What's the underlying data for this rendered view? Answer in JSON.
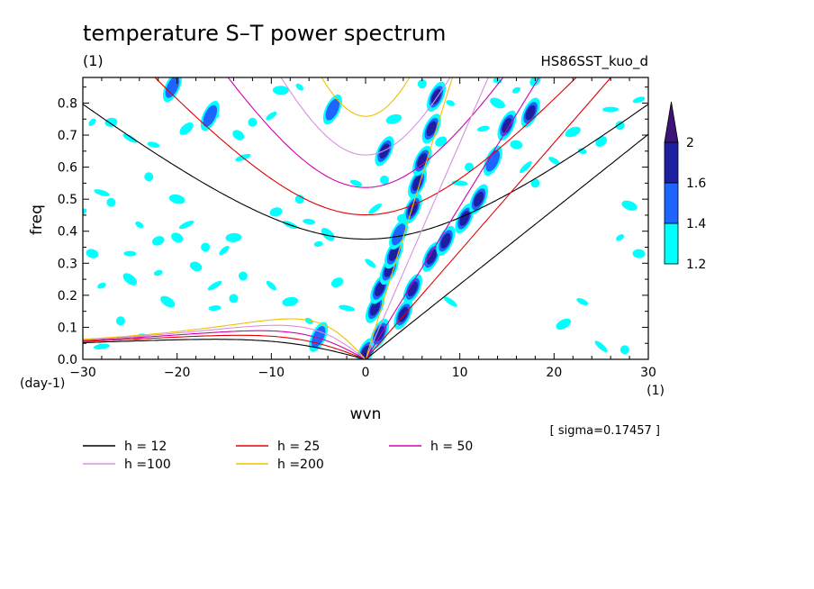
{
  "chart_data": {
    "type": "heatmap",
    "title": "temperature S–T power spectrum",
    "subtitle_left": "(1)",
    "subtitle_right": "HS86SST_kuo_d",
    "xlabel": "wvn",
    "ylabel": "freq",
    "x_unit": "(1)",
    "y_unit": "(day-1)",
    "xlim": [
      -30,
      30
    ],
    "ylim": [
      0,
      0.88
    ],
    "x_ticks": [
      -30,
      -20,
      -10,
      0,
      10,
      20,
      30
    ],
    "x_tick_labels": [
      "−30",
      "−20",
      "−10",
      "0",
      "10",
      "20",
      "30"
    ],
    "y_ticks": [
      0,
      0.1,
      0.2,
      0.3,
      0.4,
      0.5,
      0.6,
      0.7,
      0.8
    ],
    "y_tick_labels": [
      "0.0",
      "0.1",
      "0.2",
      "0.3",
      "0.4",
      "0.5",
      "0.6",
      "0.7",
      "0.8"
    ],
    "annotation": "[ sigma=0.17457 ]",
    "colorbar": {
      "levels": [
        1.2,
        1.4,
        1.6,
        2
      ],
      "labels": [
        "1.2",
        "1.4",
        "1.6",
        "2"
      ],
      "colors": [
        "#00ffff",
        "#1e64ff",
        "#1e1ea0",
        "#3c1478"
      ]
    },
    "dispersion_curves": [
      {
        "name": "h = 12",
        "h": 12,
        "color": "#000000"
      },
      {
        "name": "h = 25",
        "h": 25,
        "color": "#e00000"
      },
      {
        "name": "h = 50",
        "h": 50,
        "color": "#d000b0"
      },
      {
        "name": "h =100",
        "h": 100,
        "color": "#d890e0"
      },
      {
        "name": "h =200",
        "h": 200,
        "color": "#f0c000"
      }
    ],
    "power_blobs": [
      {
        "x": 0,
        "y": 0.02,
        "level": 3
      },
      {
        "x": 1.5,
        "y": 0.08,
        "level": 3
      },
      {
        "x": 1.0,
        "y": 0.16,
        "level": 3
      },
      {
        "x": 1.5,
        "y": 0.22,
        "level": 3
      },
      {
        "x": 2.5,
        "y": 0.28,
        "level": 3
      },
      {
        "x": 3.0,
        "y": 0.33,
        "level": 3
      },
      {
        "x": 3.5,
        "y": 0.39,
        "level": 2
      },
      {
        "x": 5.0,
        "y": 0.47,
        "level": 3
      },
      {
        "x": 5.5,
        "y": 0.55,
        "level": 3
      },
      {
        "x": 6.0,
        "y": 0.62,
        "level": 3
      },
      {
        "x": 7.0,
        "y": 0.72,
        "level": 3
      },
      {
        "x": 7.5,
        "y": 0.82,
        "level": 3
      },
      {
        "x": 4.0,
        "y": 0.14,
        "level": 3
      },
      {
        "x": 5.0,
        "y": 0.22,
        "level": 3
      },
      {
        "x": 7.0,
        "y": 0.32,
        "level": 3
      },
      {
        "x": 8.5,
        "y": 0.37,
        "level": 3
      },
      {
        "x": 10.5,
        "y": 0.44,
        "level": 3
      },
      {
        "x": 12.0,
        "y": 0.5,
        "level": 3
      },
      {
        "x": 13.5,
        "y": 0.62,
        "level": 2
      },
      {
        "x": 15.0,
        "y": 0.73,
        "level": 3
      },
      {
        "x": 17.5,
        "y": 0.77,
        "level": 3
      },
      {
        "x": 2.0,
        "y": 0.65,
        "level": 3
      },
      {
        "x": -3.5,
        "y": 0.78,
        "level": 2
      },
      {
        "x": -16.5,
        "y": 0.76,
        "level": 2
      },
      {
        "x": -20.5,
        "y": 0.85,
        "level": 2
      },
      {
        "x": -5.0,
        "y": 0.07,
        "level": 2
      }
    ],
    "noise_blobs": [
      {
        "x": -29,
        "y": 0.74
      },
      {
        "x": -27,
        "y": 0.74
      },
      {
        "x": -25,
        "y": 0.69
      },
      {
        "x": -23,
        "y": 0.57
      },
      {
        "x": -22.5,
        "y": 0.67
      },
      {
        "x": -19,
        "y": 0.72
      },
      {
        "x": -16,
        "y": 0.76
      },
      {
        "x": -13.5,
        "y": 0.7
      },
      {
        "x": -13,
        "y": 0.63
      },
      {
        "x": -12,
        "y": 0.74
      },
      {
        "x": -10,
        "y": 0.76
      },
      {
        "x": -9,
        "y": 0.84
      },
      {
        "x": -7,
        "y": 0.85
      },
      {
        "x": -9.5,
        "y": 0.46
      },
      {
        "x": -8,
        "y": 0.42
      },
      {
        "x": -7,
        "y": 0.5
      },
      {
        "x": -6,
        "y": 0.43
      },
      {
        "x": -4,
        "y": 0.39
      },
      {
        "x": -5,
        "y": 0.36
      },
      {
        "x": -20,
        "y": 0.38
      },
      {
        "x": -19,
        "y": 0.42
      },
      {
        "x": -17,
        "y": 0.35
      },
      {
        "x": -15,
        "y": 0.34
      },
      {
        "x": -14,
        "y": 0.38
      },
      {
        "x": -24,
        "y": 0.42
      },
      {
        "x": -22,
        "y": 0.37
      },
      {
        "x": -28,
        "y": 0.52
      },
      {
        "x": -27,
        "y": 0.49
      },
      {
        "x": -25,
        "y": 0.33
      },
      {
        "x": -25,
        "y": 0.25
      },
      {
        "x": -22,
        "y": 0.27
      },
      {
        "x": -18,
        "y": 0.29
      },
      {
        "x": -16,
        "y": 0.23
      },
      {
        "x": -13,
        "y": 0.26
      },
      {
        "x": -10,
        "y": 0.23
      },
      {
        "x": -8,
        "y": 0.18
      },
      {
        "x": -6,
        "y": 0.12
      },
      {
        "x": -3,
        "y": 0.24
      },
      {
        "x": -2,
        "y": 0.16
      },
      {
        "x": -14,
        "y": 0.19
      },
      {
        "x": -16,
        "y": 0.16
      },
      {
        "x": -21,
        "y": 0.18
      },
      {
        "x": -28,
        "y": 0.23
      },
      {
        "x": -29,
        "y": 0.33
      },
      {
        "x": 1,
        "y": 0.47
      },
      {
        "x": 2,
        "y": 0.56
      },
      {
        "x": 0.5,
        "y": 0.3
      },
      {
        "x": 3,
        "y": 0.75
      },
      {
        "x": 9,
        "y": 0.8
      },
      {
        "x": 8,
        "y": 0.68
      },
      {
        "x": 10,
        "y": 0.55
      },
      {
        "x": 11,
        "y": 0.6
      },
      {
        "x": 12.5,
        "y": 0.72
      },
      {
        "x": 14,
        "y": 0.8
      },
      {
        "x": 16,
        "y": 0.84
      },
      {
        "x": 16,
        "y": 0.67
      },
      {
        "x": 17,
        "y": 0.6
      },
      {
        "x": 18,
        "y": 0.55
      },
      {
        "x": 20,
        "y": 0.62
      },
      {
        "x": 22,
        "y": 0.71
      },
      {
        "x": 23,
        "y": 0.65
      },
      {
        "x": 25,
        "y": 0.68
      },
      {
        "x": 26,
        "y": 0.78
      },
      {
        "x": 27,
        "y": 0.73
      },
      {
        "x": 29,
        "y": 0.81
      },
      {
        "x": 28,
        "y": 0.48
      },
      {
        "x": 27,
        "y": 0.38
      },
      {
        "x": 29,
        "y": 0.33
      },
      {
        "x": 25,
        "y": 0.04
      },
      {
        "x": 27.5,
        "y": 0.03
      },
      {
        "x": 23,
        "y": 0.18
      },
      {
        "x": 21,
        "y": 0.11
      },
      {
        "x": 14,
        "y": 0.87
      },
      {
        "x": 18,
        "y": 0.87
      },
      {
        "x": -28,
        "y": 0.04
      },
      {
        "x": -26,
        "y": 0.12
      },
      {
        "x": -24,
        "y": 0.07
      },
      {
        "x": -20,
        "y": 0.5
      },
      {
        "x": -30,
        "y": 0.46
      },
      {
        "x": 4,
        "y": 0.44
      },
      {
        "x": 9,
        "y": 0.18
      },
      {
        "x": 6,
        "y": 0.86
      },
      {
        "x": -1,
        "y": 0.55
      }
    ],
    "legend": {
      "placement": "bottom-left",
      "columns": 3
    }
  }
}
